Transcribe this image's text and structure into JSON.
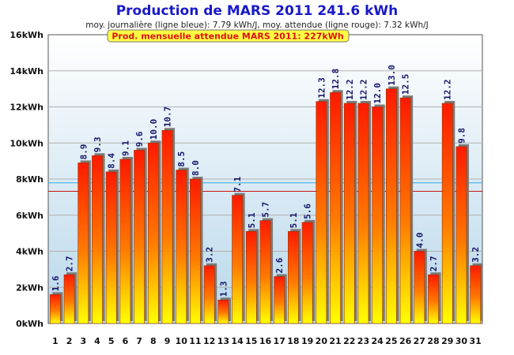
{
  "chart_data": {
    "type": "bar",
    "title": "Production de MARS 2011  241.6 kWh",
    "subtitle": "moy. journalière (ligne bleue): 7.79 kWh/J,   moy. attendue (ligne rouge): 7.32 kWh/J",
    "banner": "Prod. mensuelle attendue MARS 2011: 227kWh",
    "categories": [
      "1",
      "2",
      "3",
      "4",
      "5",
      "6",
      "7",
      "8",
      "9",
      "10",
      "11",
      "12",
      "13",
      "14",
      "15",
      "16",
      "17",
      "18",
      "19",
      "20",
      "21",
      "22",
      "23",
      "24",
      "25",
      "26",
      "27",
      "28",
      "29",
      "30",
      "31"
    ],
    "values": [
      1.6,
      2.7,
      8.9,
      9.3,
      8.4,
      9.1,
      9.6,
      10.0,
      10.7,
      8.5,
      8.0,
      3.2,
      1.3,
      7.1,
      5.1,
      5.7,
      2.6,
      5.1,
      5.6,
      12.3,
      12.8,
      12.2,
      12.2,
      12.0,
      13.0,
      12.5,
      4.0,
      2.7,
      12.2,
      9.8,
      3.2
    ],
    "value_labels": [
      "1.6",
      "2.7",
      "8.9",
      "9.3",
      "8.4",
      "9.1",
      "9.6",
      "10.0",
      "10.7",
      "8.5",
      "8.0",
      "3.2",
      "1.3",
      "7.1",
      "5.1",
      "5.7",
      "2.6",
      "5.1",
      "5.6",
      "12.3",
      "12.8",
      "12.2",
      "12.2",
      "12.0",
      "13.0",
      "12.5",
      "4.0",
      "2.7",
      "12.2",
      "9.8",
      "3.2"
    ],
    "y_ticks": [
      "0kWh",
      "2kWh",
      "4kWh",
      "6kWh",
      "8kWh",
      "10kWh",
      "12kWh",
      "14kWh",
      "16kWh"
    ],
    "ylim": [
      0,
      16
    ],
    "reference_lines": [
      {
        "value": 7.79,
        "color": "#33aaee"
      },
      {
        "value": 7.32,
        "color": "#cc1111"
      }
    ],
    "grid": true,
    "colors": {
      "title": "#1a1ac8",
      "banner_text": "#e01010",
      "banner_fill": "#ffff44",
      "bar_top": "#ff1a00",
      "bar_bottom": "#ffff00",
      "bar_shadow": "#777777"
    }
  }
}
